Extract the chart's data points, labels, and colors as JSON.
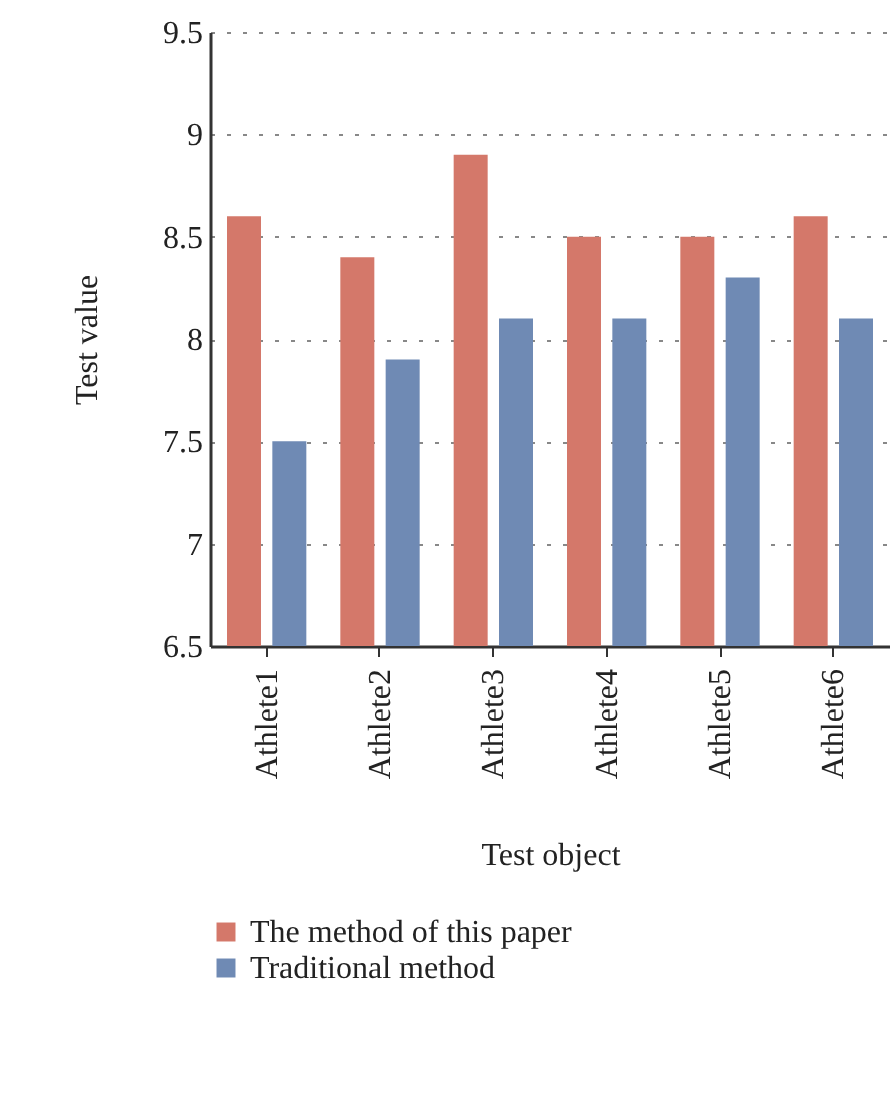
{
  "chart_data": {
    "type": "bar",
    "xlabel": "Test object",
    "ylabel": "Test value",
    "categories": [
      "Athlete1",
      "Athlete2",
      "Athlete3",
      "Athlete4",
      "Athlete5",
      "Athlete6"
    ],
    "series": [
      {
        "name": "The method of this paper",
        "color": "#d4786a",
        "values": [
          8.6,
          8.4,
          8.9,
          8.5,
          8.5,
          8.6
        ]
      },
      {
        "name": "Traditional method",
        "color": "#6f8ab4",
        "values": [
          7.5,
          7.9,
          8.1,
          8.1,
          8.3,
          8.1
        ]
      }
    ],
    "ylim": [
      6.5,
      9.5
    ],
    "yticks": [
      6.5,
      7,
      7.5,
      8,
      8.5,
      9,
      9.5
    ],
    "grid": "y",
    "legend": "bottom"
  }
}
